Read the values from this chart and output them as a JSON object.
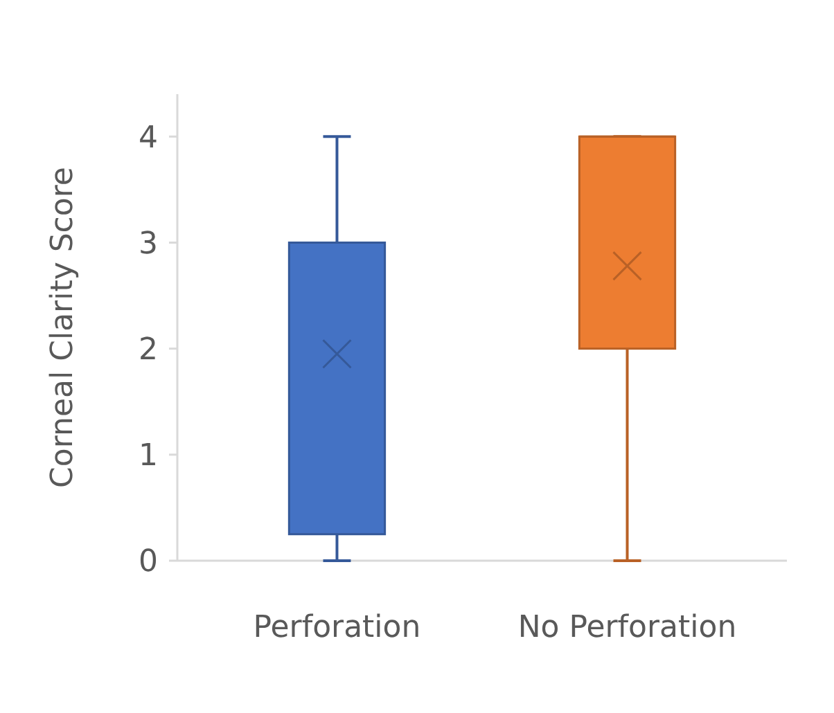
{
  "chart_data": {
    "type": "box",
    "ylabel": "Corneal Clarity Score",
    "categories": [
      "Perforation",
      "No Perforation"
    ],
    "colors": [
      "#4472c4",
      "#ed7d31"
    ],
    "boxes": [
      {
        "low": 0,
        "q1": 0.25,
        "median": 3,
        "q3": 3,
        "high": 4,
        "mean": 1.95
      },
      {
        "low": 0,
        "q1": 2,
        "median": 4,
        "q3": 4,
        "high": 4,
        "mean": 2.78
      }
    ],
    "ylim": [
      0,
      4.4
    ],
    "yticks": [
      0,
      1,
      2,
      3,
      4
    ],
    "grid": false
  }
}
